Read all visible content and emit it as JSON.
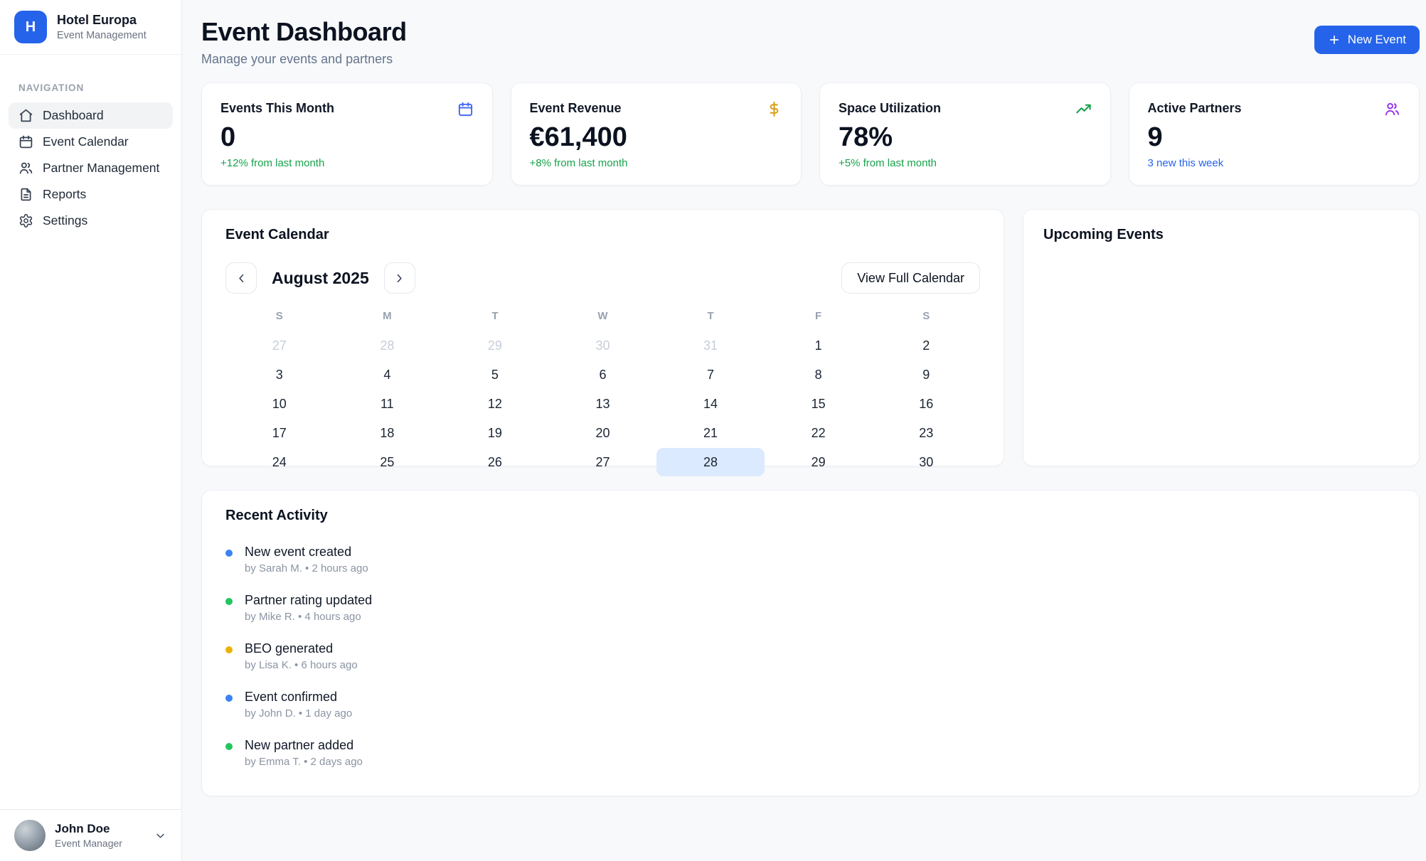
{
  "sidebar": {
    "brand": {
      "initial": "H",
      "name": "Hotel Europa",
      "subtitle": "Event Management"
    },
    "nav_label": "NAVIGATION",
    "items": [
      {
        "label": "Dashboard",
        "icon": "home",
        "active": true
      },
      {
        "label": "Event Calendar",
        "icon": "calendar",
        "active": false
      },
      {
        "label": "Partner Management",
        "icon": "users",
        "active": false
      },
      {
        "label": "Reports",
        "icon": "file",
        "active": false
      },
      {
        "label": "Settings",
        "icon": "gear",
        "active": false
      }
    ],
    "user": {
      "name": "John Doe",
      "role": "Event Manager"
    }
  },
  "header": {
    "title": "Event Dashboard",
    "subtitle": "Manage your events and partners",
    "new_event_label": "New Event"
  },
  "stats": [
    {
      "title": "Events This Month",
      "value": "0",
      "change": "+12% from last month",
      "icon": "calendar",
      "icon_color": "#4166f5",
      "change_color": "#16a34a"
    },
    {
      "title": "Event Revenue",
      "value": "€61,400",
      "change": "+8% from last month",
      "icon": "dollar",
      "icon_color": "#d9a21b",
      "change_color": "#16a34a"
    },
    {
      "title": "Space Utilization",
      "value": "78%",
      "change": "+5% from last month",
      "icon": "trend",
      "icon_color": "#16a34a",
      "change_color": "#16a34a"
    },
    {
      "title": "Active Partners",
      "value": "9",
      "change": "3 new this week",
      "icon": "users",
      "icon_color": "#9333ea",
      "change_color": "#2563eb"
    }
  ],
  "calendar": {
    "title": "Event Calendar",
    "month": "August 2025",
    "view_full_label": "View Full Calendar",
    "day_headers": [
      "S",
      "M",
      "T",
      "W",
      "T",
      "F",
      "S"
    ],
    "selected_day_bg": "#dbeafe",
    "weeks": [
      [
        {
          "day": "27",
          "muted": true
        },
        {
          "day": "28",
          "muted": true
        },
        {
          "day": "29",
          "muted": true
        },
        {
          "day": "30",
          "muted": true
        },
        {
          "day": "31",
          "muted": true
        },
        {
          "day": "1",
          "muted": false
        },
        {
          "day": "2",
          "muted": false
        }
      ],
      [
        {
          "day": "3",
          "muted": false
        },
        {
          "day": "4",
          "muted": false
        },
        {
          "day": "5",
          "muted": false
        },
        {
          "day": "6",
          "muted": false
        },
        {
          "day": "7",
          "muted": false
        },
        {
          "day": "8",
          "muted": false
        },
        {
          "day": "9",
          "muted": false
        }
      ],
      [
        {
          "day": "10",
          "muted": false
        },
        {
          "day": "11",
          "muted": false
        },
        {
          "day": "12",
          "muted": false
        },
        {
          "day": "13",
          "muted": false
        },
        {
          "day": "14",
          "muted": false
        },
        {
          "day": "15",
          "muted": false
        },
        {
          "day": "16",
          "muted": false
        }
      ],
      [
        {
          "day": "17",
          "muted": false
        },
        {
          "day": "18",
          "muted": false
        },
        {
          "day": "19",
          "muted": false
        },
        {
          "day": "20",
          "muted": false
        },
        {
          "day": "21",
          "muted": false
        },
        {
          "day": "22",
          "muted": false
        },
        {
          "day": "23",
          "muted": false
        }
      ],
      [
        {
          "day": "24",
          "muted": false
        },
        {
          "day": "25",
          "muted": false
        },
        {
          "day": "26",
          "muted": false
        },
        {
          "day": "27",
          "muted": false
        },
        {
          "day": "28",
          "muted": false,
          "selected": true
        },
        {
          "day": "29",
          "muted": false
        },
        {
          "day": "30",
          "muted": false
        }
      ]
    ]
  },
  "upcoming": {
    "title": "Upcoming Events"
  },
  "activity": {
    "title": "Recent Activity",
    "items": [
      {
        "title": "New event created",
        "meta": "by Sarah M. • 2 hours ago",
        "dot_color": "#3b82f6"
      },
      {
        "title": "Partner rating updated",
        "meta": "by Mike R. • 4 hours ago",
        "dot_color": "#22c55e"
      },
      {
        "title": "BEO generated",
        "meta": "by Lisa K. • 6 hours ago",
        "dot_color": "#eab308"
      },
      {
        "title": "Event confirmed",
        "meta": "by John D. • 1 day ago",
        "dot_color": "#3b82f6"
      },
      {
        "title": "New partner added",
        "meta": "by Emma T. • 2 days ago",
        "dot_color": "#22c55e"
      }
    ]
  },
  "colors": {
    "primary": "#2563eb",
    "positive": "#16a34a",
    "selected_day": "#dbeafe"
  }
}
